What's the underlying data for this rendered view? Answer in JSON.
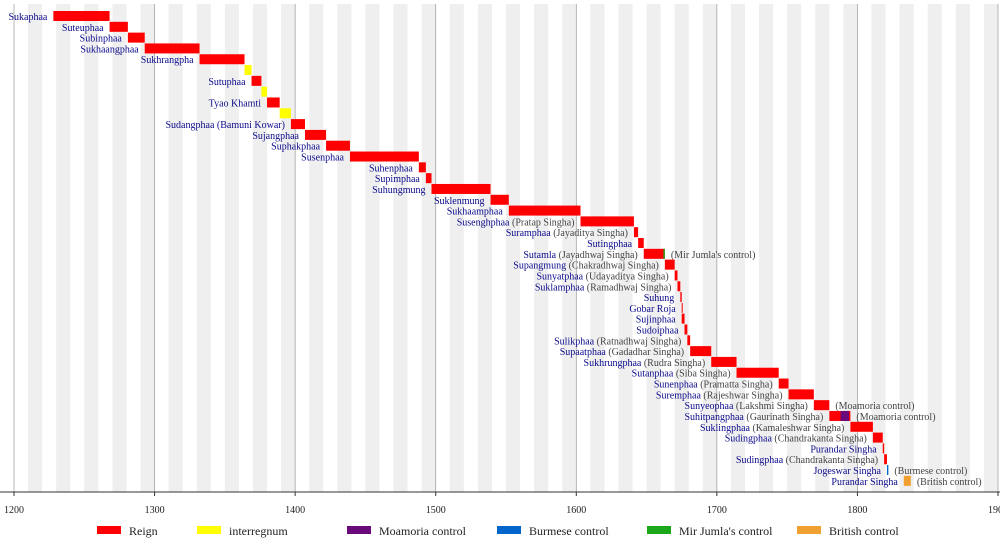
{
  "chart_data": {
    "type": "timeline",
    "xlim": [
      1200,
      1900
    ],
    "xticks": [
      1200,
      1300,
      1400,
      1500,
      1600,
      1700,
      1800,
      1900
    ],
    "grid": true,
    "series": [
      {
        "name": "Reign",
        "color": "#ff0000"
      },
      {
        "name": "interregnum",
        "color": "#ffff00"
      },
      {
        "name": "Moamoria control",
        "color": "#6a0a7a"
      },
      {
        "name": "Burmese control",
        "color": "#0066cc"
      },
      {
        "name": "Mir Jumla's control",
        "color": "#1aa81a"
      },
      {
        "name": "British control",
        "color": "#f0a030"
      }
    ],
    "rows": [
      {
        "name": "Sukaphaa",
        "start": 1228,
        "end": 1268,
        "color": "#ff0000"
      },
      {
        "name": "Suteuphaa",
        "start": 1268,
        "end": 1281,
        "color": "#ff0000"
      },
      {
        "name": "Subinphaa",
        "start": 1281,
        "end": 1293,
        "color": "#ff0000"
      },
      {
        "name": "Sukhaangphaa",
        "start": 1293,
        "end": 1332,
        "color": "#ff0000"
      },
      {
        "name": "Sukhrangpha",
        "start": 1332,
        "end": 1364,
        "color": "#ff0000"
      },
      {
        "start": 1364,
        "end": 1369,
        "color": "#ffff00"
      },
      {
        "name": "Sutuphaa",
        "start": 1369,
        "end": 1376,
        "color": "#ff0000"
      },
      {
        "start": 1376,
        "end": 1380,
        "color": "#ffff00"
      },
      {
        "name": "Tyao Khamti",
        "start": 1380,
        "end": 1389,
        "color": "#ff0000"
      },
      {
        "start": 1389,
        "end": 1397,
        "color": "#ffff00"
      },
      {
        "name": "Sudangphaa (Bamuni Kowar)",
        "start": 1397,
        "end": 1407,
        "color": "#ff0000"
      },
      {
        "name": "Sujangphaa",
        "start": 1407,
        "end": 1422,
        "color": "#ff0000"
      },
      {
        "name": "Suphakphaa",
        "start": 1422,
        "end": 1439,
        "color": "#ff0000"
      },
      {
        "name": "Susenphaa",
        "start": 1439,
        "end": 1488,
        "color": "#ff0000"
      },
      {
        "name": "Suhenphaa",
        "start": 1488,
        "end": 1493,
        "color": "#ff0000"
      },
      {
        "name": "Supimphaa",
        "start": 1493,
        "end": 1497,
        "color": "#ff0000"
      },
      {
        "name": "Suhungmung",
        "start": 1497,
        "end": 1539,
        "color": "#ff0000"
      },
      {
        "name": "Suklenmung",
        "start": 1539,
        "end": 1552,
        "color": "#ff0000"
      },
      {
        "name": "Sukhaamphaa",
        "start": 1552,
        "end": 1603,
        "color": "#ff0000"
      },
      {
        "name": "Susenghphaa",
        "title": "(Pratap Singha)",
        "start": 1603,
        "end": 1641,
        "color": "#ff0000"
      },
      {
        "name": "Suramphaa",
        "title": "(Jayaditya Singha)",
        "start": 1641,
        "end": 1644,
        "color": "#ff0000"
      },
      {
        "name": "Sutingphaa",
        "start": 1644,
        "end": 1648,
        "color": "#ff0000"
      },
      {
        "name": "Sutamla",
        "title": "(Jayadhwaj Singha)",
        "start": 1648,
        "end": 1663,
        "color": "#ff0000",
        "overlay": {
          "start": 1662,
          "end": 1663,
          "color": "#1aa81a"
        },
        "note": "(Mir Jumla's control)"
      },
      {
        "name": "Supangmung",
        "title": "(Chakradhwaj Singha)",
        "start": 1663,
        "end": 1670,
        "color": "#ff0000"
      },
      {
        "name": "Sunyatphaa",
        "title": "(Udayaditya Singha)",
        "start": 1670,
        "end": 1672,
        "color": "#ff0000"
      },
      {
        "name": "Suklamphaa",
        "title": "(Ramadhwaj Singha)",
        "start": 1672,
        "end": 1674,
        "color": "#ff0000"
      },
      {
        "name": "Suhung",
        "start": 1674,
        "end": 1675,
        "color": "#ff0000"
      },
      {
        "name": "Gobar Roja",
        "start": 1675,
        "end": 1675,
        "color": "#ff0000"
      },
      {
        "name": "Sujinphaa",
        "start": 1675,
        "end": 1677,
        "color": "#ff0000"
      },
      {
        "name": "Sudoiphaa",
        "start": 1677,
        "end": 1679,
        "color": "#ff0000"
      },
      {
        "name": "Sulikphaa",
        "title": "(Ratnadhwaj Singha)",
        "start": 1679,
        "end": 1681,
        "color": "#ff0000"
      },
      {
        "name": "Supaatphaa",
        "title": "(Gadadhar Singha)",
        "start": 1681,
        "end": 1696,
        "color": "#ff0000"
      },
      {
        "name": "Sukhrungphaa",
        "title": "(Rudra Singha)",
        "start": 1696,
        "end": 1714,
        "color": "#ff0000"
      },
      {
        "name": "Sutanphaa",
        "title": "(Siba Singha)",
        "start": 1714,
        "end": 1744,
        "color": "#ff0000"
      },
      {
        "name": "Sunenphaa",
        "title": "(Pramatta Singha)",
        "start": 1744,
        "end": 1751,
        "color": "#ff0000"
      },
      {
        "name": "Suremphaa",
        "title": "(Rajeshwar Singha)",
        "start": 1751,
        "end": 1769,
        "color": "#ff0000"
      },
      {
        "name": "Sunyeophaa",
        "title": "(Lakshmi Singha)",
        "start": 1769,
        "end": 1780,
        "color": "#ff0000",
        "note": "(Moamoria control)"
      },
      {
        "name": "Suhitpangphaa",
        "title": "(Gaurinath Singha)",
        "start": 1780,
        "end": 1795,
        "color": "#ff0000",
        "overlay": {
          "start": 1788,
          "end": 1794,
          "color": "#6a0a7a"
        },
        "note": "(Moamoria control)"
      },
      {
        "name": "Suklingphaa",
        "title": "(Kamaleshwar Singha)",
        "start": 1795,
        "end": 1811,
        "color": "#ff0000"
      },
      {
        "name": "Sudingphaa",
        "title": "(Chandrakanta Singha)",
        "start": 1811,
        "end": 1818,
        "color": "#ff0000"
      },
      {
        "name": "Purandar Singha",
        "start": 1818,
        "end": 1819,
        "color": "#ff0000"
      },
      {
        "name": "Sudingphaa",
        "title": "(Chandrakanta Singha)",
        "start": 1819,
        "end": 1821,
        "color": "#ff0000"
      },
      {
        "name": "Jogeswar Singha",
        "start": 1821,
        "end": 1822,
        "color": "#0066cc",
        "note": "(Burmese control)"
      },
      {
        "name": "Purandar Singha",
        "start": 1833,
        "end": 1838,
        "color": "#f0a030",
        "note": "(British control)"
      }
    ]
  }
}
